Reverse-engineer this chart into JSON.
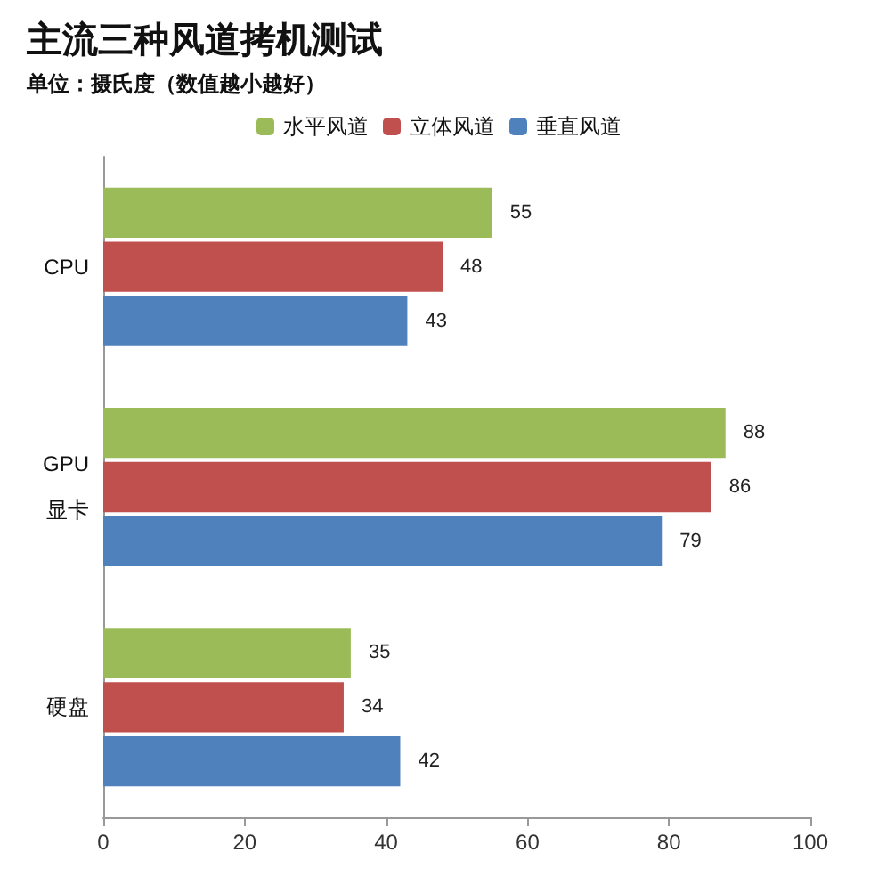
{
  "chart_data": {
    "type": "bar",
    "orientation": "horizontal",
    "title": "主流三种风道拷机测试",
    "subtitle": "单位：摄氏度（数值越小越好）",
    "categories": [
      "CPU",
      "GPU\n显卡",
      "硬盘"
    ],
    "series": [
      {
        "name": "水平风道",
        "color": "#9bbb59",
        "values": [
          55,
          88,
          35
        ]
      },
      {
        "name": "立体风道",
        "color": "#c0504d",
        "values": [
          48,
          86,
          34
        ]
      },
      {
        "name": "垂直风道",
        "color": "#4f81bd",
        "values": [
          43,
          79,
          42
        ]
      }
    ],
    "xlim": [
      0,
      100
    ],
    "xticks": [
      0,
      20,
      40,
      60,
      80,
      100
    ],
    "data_labels": true,
    "legend": "top",
    "grid": false
  }
}
